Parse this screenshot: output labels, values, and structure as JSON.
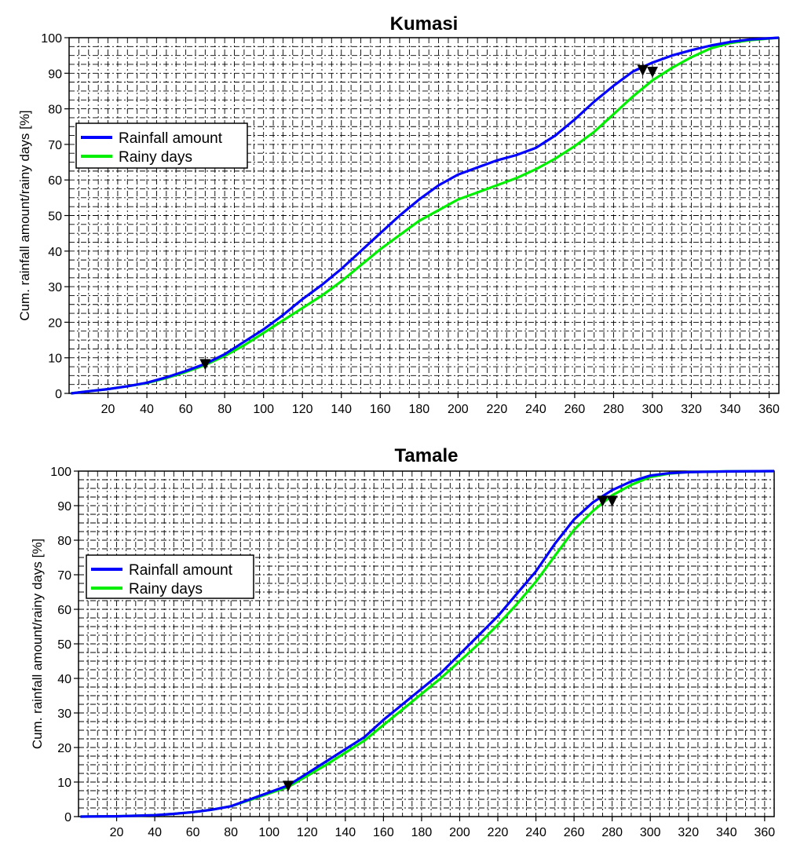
{
  "chart_data": [
    {
      "type": "line",
      "title": "Kumasi",
      "xlabel": "",
      "ylabel": "Cum. rainfall amount/rainy days [%]",
      "xlim": [
        0,
        365
      ],
      "ylim": [
        0,
        100
      ],
      "xticks": [
        20,
        40,
        60,
        80,
        100,
        120,
        140,
        160,
        180,
        200,
        220,
        240,
        260,
        280,
        300,
        320,
        340,
        360
      ],
      "yticks": [
        0,
        10,
        20,
        30,
        40,
        50,
        60,
        70,
        80,
        90,
        100
      ],
      "grid": true,
      "legend_position": "left",
      "series": [
        {
          "name": "Rainfall amount",
          "color": "#0000ff",
          "x": [
            1,
            10,
            20,
            30,
            40,
            50,
            60,
            70,
            80,
            90,
            100,
            110,
            120,
            130,
            140,
            150,
            160,
            170,
            180,
            190,
            200,
            210,
            220,
            230,
            240,
            250,
            260,
            270,
            280,
            290,
            300,
            310,
            320,
            330,
            340,
            350,
            365
          ],
          "y": [
            0,
            0.6,
            1.2,
            2.0,
            3.0,
            4.5,
            6.3,
            8.3,
            11.0,
            14.5,
            18.0,
            22.0,
            26.5,
            30.5,
            35.0,
            40.0,
            45.0,
            50.0,
            54.5,
            58.5,
            61.5,
            63.5,
            65.5,
            67.0,
            69.0,
            72.5,
            77.0,
            82.0,
            86.5,
            90.5,
            93.0,
            95.0,
            96.5,
            97.8,
            98.8,
            99.5,
            100
          ]
        },
        {
          "name": "Rainy days",
          "color": "#00ee00",
          "x": [
            1,
            10,
            20,
            30,
            40,
            50,
            60,
            70,
            80,
            90,
            100,
            110,
            120,
            130,
            140,
            150,
            160,
            170,
            180,
            190,
            200,
            210,
            220,
            230,
            240,
            250,
            260,
            270,
            280,
            290,
            300,
            310,
            320,
            330,
            340,
            350,
            365
          ],
          "y": [
            0,
            0.6,
            1.2,
            2.0,
            2.9,
            4.3,
            6.0,
            8.0,
            10.5,
            13.5,
            17.0,
            20.5,
            24.0,
            27.5,
            31.5,
            36.0,
            40.5,
            44.5,
            48.5,
            51.5,
            54.5,
            56.5,
            58.5,
            60.5,
            63.0,
            66.0,
            69.5,
            73.5,
            78.5,
            83.5,
            88.0,
            91.5,
            94.5,
            97.0,
            98.5,
            99.3,
            100
          ]
        }
      ],
      "markers": [
        {
          "x": 70,
          "y": 8.3
        },
        {
          "x": 295,
          "y": 91
        },
        {
          "x": 300,
          "y": 90.5
        }
      ]
    },
    {
      "type": "line",
      "title": "Tamale",
      "xlabel": "",
      "ylabel": "Cum. rainfall amount/rainy days [%]",
      "xlim": [
        0,
        365
      ],
      "ylim": [
        0,
        100
      ],
      "xticks": [
        20,
        40,
        60,
        80,
        100,
        120,
        140,
        160,
        180,
        200,
        220,
        240,
        260,
        280,
        300,
        320,
        340,
        360
      ],
      "yticks": [
        0,
        10,
        20,
        30,
        40,
        50,
        60,
        70,
        80,
        90,
        100
      ],
      "grid": true,
      "legend_position": "left",
      "series": [
        {
          "name": "Rainfall amount",
          "color": "#0000ff",
          "x": [
            1,
            20,
            40,
            50,
            60,
            70,
            80,
            90,
            100,
            110,
            120,
            130,
            140,
            150,
            160,
            170,
            180,
            190,
            200,
            210,
            220,
            230,
            240,
            250,
            260,
            270,
            280,
            290,
            300,
            310,
            320,
            340,
            365
          ],
          "y": [
            0,
            0.1,
            0.4,
            0.8,
            1.3,
            2.0,
            3.0,
            5.0,
            7.0,
            9.0,
            12.5,
            16.0,
            19.5,
            23.0,
            28.0,
            32.5,
            37.0,
            41.5,
            47.0,
            52.5,
            58.0,
            64.5,
            71.0,
            79.0,
            86.0,
            91.0,
            94.5,
            97.0,
            98.7,
            99.4,
            99.7,
            99.9,
            100
          ]
        },
        {
          "name": "Rainy days",
          "color": "#00ee00",
          "x": [
            1,
            20,
            40,
            50,
            60,
            70,
            80,
            90,
            100,
            110,
            120,
            130,
            140,
            150,
            160,
            170,
            180,
            190,
            200,
            210,
            220,
            230,
            240,
            250,
            260,
            270,
            280,
            290,
            300,
            310,
            320,
            340,
            365
          ],
          "y": [
            0,
            0.1,
            0.4,
            0.8,
            1.3,
            2.0,
            3.0,
            4.8,
            6.7,
            8.6,
            11.8,
            15.0,
            18.5,
            22.0,
            26.5,
            31.0,
            35.5,
            40.0,
            45.0,
            50.0,
            55.5,
            61.5,
            68.0,
            75.5,
            83.0,
            88.5,
            93.0,
            96.0,
            98.3,
            99.3,
            99.7,
            99.9,
            100
          ]
        }
      ],
      "markers": [
        {
          "x": 110,
          "y": 9
        },
        {
          "x": 275,
          "y": 91.5
        },
        {
          "x": 280,
          "y": 91.5
        }
      ]
    }
  ]
}
